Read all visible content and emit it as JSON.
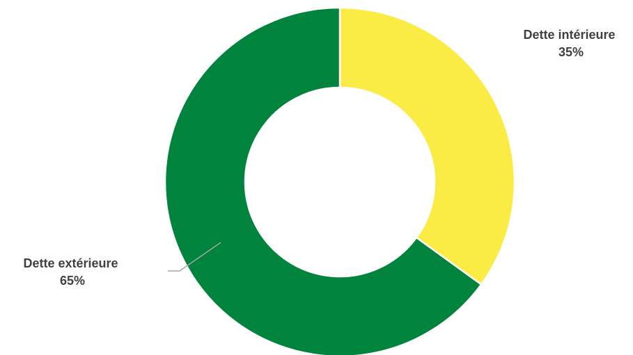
{
  "chart_data": {
    "type": "pie",
    "variant": "donut",
    "slices": [
      {
        "label": "Dette intérieure",
        "value": 35,
        "value_label": "35%",
        "color": "#FBEC45"
      },
      {
        "label": "Dette extérieure",
        "value": 65,
        "value_label": "65%",
        "color": "#00843D"
      }
    ],
    "legend": "none"
  }
}
